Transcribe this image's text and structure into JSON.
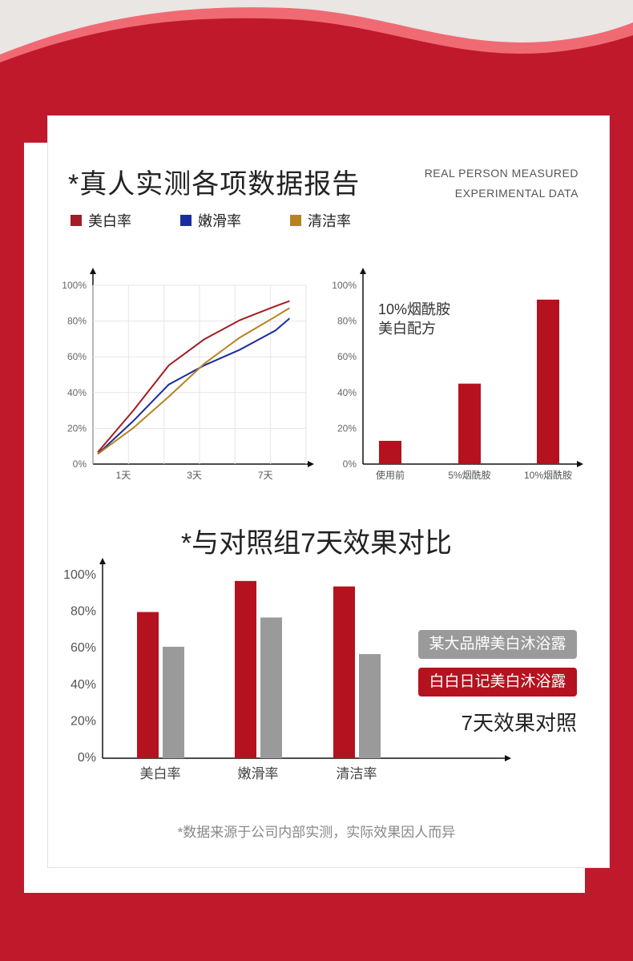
{
  "header": {
    "title": "*真人实测各项数据报告",
    "subtitle_line1": "REAL PERSON MEASURED",
    "subtitle_line2": "EXPERIMENTAL DATA"
  },
  "legend": [
    {
      "label": "美白率",
      "color": "#a51c24"
    },
    {
      "label": "嫩滑率",
      "color": "#1a2d9e"
    },
    {
      "label": "清洁率",
      "color": "#b8831f"
    }
  ],
  "colors": {
    "red": "#b5121f",
    "gray": "#9a9a9a",
    "bg_red": "#c0192b"
  },
  "chart_data": [
    {
      "type": "line",
      "x_labels": [
        "1天",
        "3天",
        "7天"
      ],
      "y_ticks": [
        "100%",
        "80%",
        "60%",
        "40%",
        "20%",
        "0%"
      ],
      "ylim": [
        0,
        100
      ],
      "grid": true,
      "series": [
        {
          "name": "美白率",
          "color": "#a51c24",
          "points": [
            [
              0,
              4
            ],
            [
              1,
              28
            ],
            [
              2,
              54
            ],
            [
              3,
              69
            ],
            [
              4,
              80
            ],
            [
              5,
              88
            ],
            [
              5.4,
              91
            ]
          ]
        },
        {
          "name": "嫩滑率",
          "color": "#1a2d9e",
          "points": [
            [
              0,
              3
            ],
            [
              1,
              22
            ],
            [
              2,
              43
            ],
            [
              3,
              54
            ],
            [
              4,
              63
            ],
            [
              5,
              74
            ],
            [
              5.4,
              81
            ]
          ]
        },
        {
          "name": "清洁率",
          "color": "#b8831f",
          "points": [
            [
              0,
              3
            ],
            [
              1,
              18
            ],
            [
              2,
              36
            ],
            [
              3,
              55
            ],
            [
              4,
              70
            ],
            [
              5,
              82
            ],
            [
              5.4,
              87
            ]
          ]
        }
      ]
    },
    {
      "type": "bar",
      "annotation_line1": "10%烟酰胺",
      "annotation_line2": "美白配方",
      "categories": [
        "使用前",
        "5%烟酰胺",
        "10%烟酰胺"
      ],
      "y_ticks": [
        "100%",
        "80%",
        "60%",
        "40%",
        "20%",
        "0%"
      ],
      "ylim": [
        0,
        100
      ],
      "values": [
        13,
        45,
        92
      ]
    },
    {
      "type": "bar",
      "title": "*与对照组7天效果对比",
      "categories": [
        "美白率",
        "嫩滑率",
        "清洁率"
      ],
      "y_ticks": [
        "100%",
        "80%",
        "60%",
        "40%",
        "20%",
        "0%"
      ],
      "ylim": [
        0,
        100
      ],
      "series": [
        {
          "name": "白白日记美白沐浴露",
          "color": "#b5121f",
          "values": [
            80,
            97,
            94
          ]
        },
        {
          "name": "某大品牌美白沐浴露",
          "color": "#9a9a9a",
          "values": [
            61,
            77,
            57
          ]
        }
      ],
      "note": "7天效果对照"
    }
  ],
  "footer": {
    "disclaimer": "*数据来源于公司内部实测，实际效果因人而异"
  }
}
